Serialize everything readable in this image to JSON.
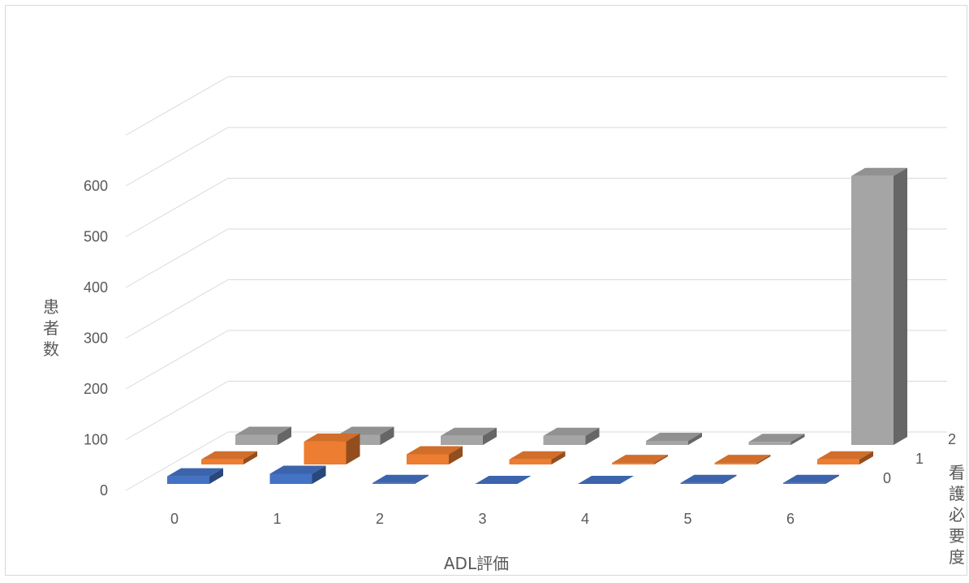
{
  "chart_data": {
    "type": "bar",
    "variant": "3d-column",
    "title": "",
    "xlabel": "ADL評価",
    "ylabel": "患者数",
    "zlabel": "看護必要度",
    "categories": [
      "0",
      "1",
      "2",
      "3",
      "4",
      "5",
      "6"
    ],
    "yticks": [
      "0",
      "100",
      "200",
      "300",
      "400",
      "500",
      "600"
    ],
    "ylim": [
      0,
      700
    ],
    "grid": true,
    "legend": "none",
    "series": [
      {
        "label": "0",
        "color": "#4472c4",
        "values": [
          15,
          20,
          2,
          0,
          0,
          2,
          2
        ]
      },
      {
        "label": "1",
        "color": "#ed7d31",
        "values": [
          10,
          45,
          20,
          10,
          3,
          3,
          10
        ]
      },
      {
        "label": "2",
        "color": "#a5a5a5",
        "values": [
          20,
          20,
          18,
          18,
          8,
          6,
          530
        ]
      }
    ]
  }
}
